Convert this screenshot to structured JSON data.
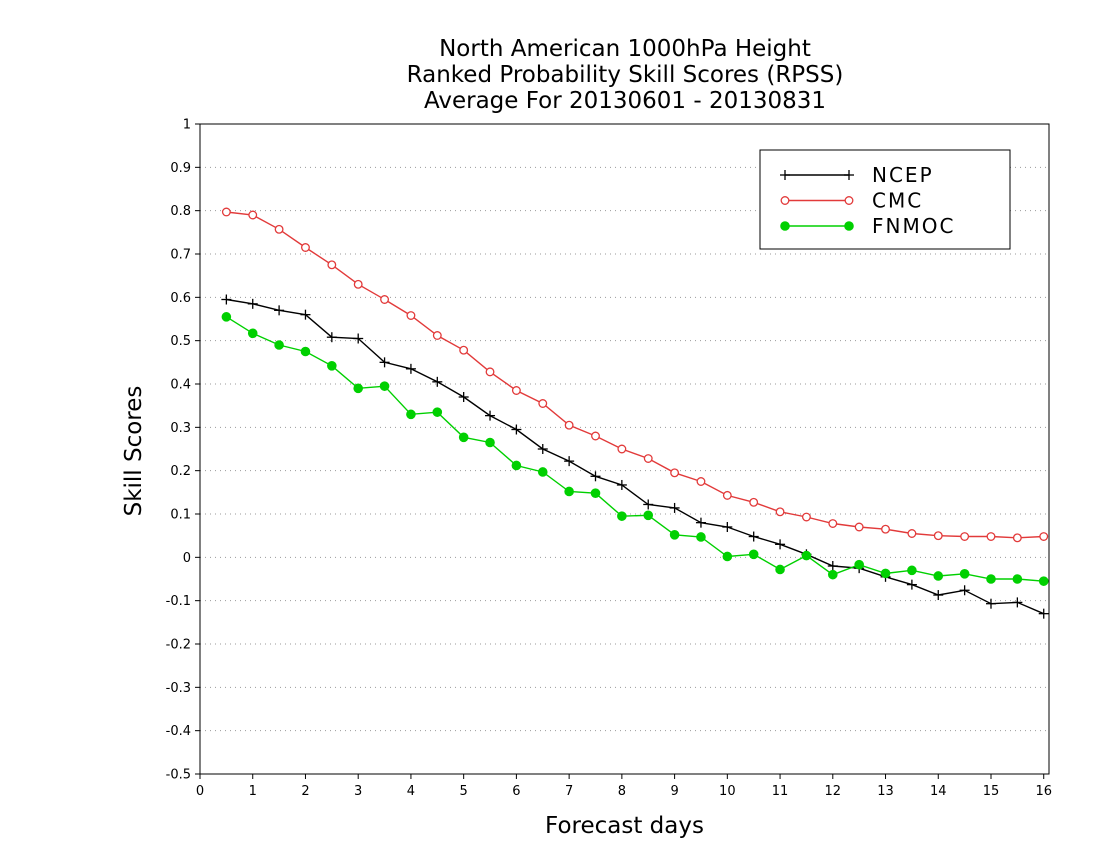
{
  "chart_data": {
    "type": "line",
    "title": [
      "North American 1000hPa Height",
      "Ranked Probability Skill Scores (RPSS)",
      "Average For 20130601 - 20130831"
    ],
    "xlabel": "Forecast days",
    "ylabel": "Skill Scores",
    "xlim": [
      0,
      16.1
    ],
    "ylim": [
      -0.5,
      1
    ],
    "xticks": [
      "0",
      "1",
      "2",
      "3",
      "4",
      "5",
      "6",
      "7",
      "8",
      "9",
      "10",
      "11",
      "12",
      "13",
      "14",
      "15",
      "16"
    ],
    "yticks": [
      "-0.5",
      "-0.4",
      "-0.3",
      "-0.2",
      "-0.1",
      "0",
      "0.1",
      "0.2",
      "0.3",
      "0.4",
      "0.5",
      "0.6",
      "0.7",
      "0.8",
      "0.9",
      "1"
    ],
    "grid": "horizontal dotted",
    "legend_position": "top-right",
    "x": [
      0.5,
      1,
      1.5,
      2,
      2.5,
      3,
      3.5,
      4,
      4.5,
      5,
      5.5,
      6,
      6.5,
      7,
      7.5,
      8,
      8.5,
      9,
      9.5,
      10,
      10.5,
      11,
      11.5,
      12,
      12.5,
      13,
      13.5,
      14,
      14.5,
      15,
      15.5,
      16
    ],
    "series": [
      {
        "name": "NCEP",
        "color": "#000000",
        "marker": "plus",
        "values": [
          0.595,
          0.585,
          0.57,
          0.56,
          0.508,
          0.505,
          0.45,
          0.435,
          0.405,
          0.37,
          0.327,
          0.295,
          0.25,
          0.222,
          0.187,
          0.167,
          0.122,
          0.114,
          0.08,
          0.07,
          0.048,
          0.03,
          0.007,
          -0.02,
          -0.025,
          -0.045,
          -0.063,
          -0.087,
          -0.076,
          -0.107,
          -0.104,
          -0.13
        ]
      },
      {
        "name": "CMC",
        "color": "#e23a3a",
        "marker": "open-circle",
        "values": [
          0.797,
          0.79,
          0.757,
          0.715,
          0.675,
          0.63,
          0.595,
          0.558,
          0.512,
          0.478,
          0.428,
          0.385,
          0.355,
          0.305,
          0.28,
          0.25,
          0.228,
          0.195,
          0.175,
          0.143,
          0.127,
          0.105,
          0.093,
          0.078,
          0.07,
          0.065,
          0.055,
          0.05,
          0.048,
          0.048,
          0.045,
          0.048
        ]
      },
      {
        "name": "FNMOC",
        "color": "#00d000",
        "marker": "filled-circle",
        "values": [
          0.555,
          0.517,
          0.49,
          0.475,
          0.442,
          0.39,
          0.395,
          0.33,
          0.335,
          0.277,
          0.265,
          0.212,
          0.197,
          0.152,
          0.148,
          0.095,
          0.097,
          0.052,
          0.047,
          0.002,
          0.007,
          -0.028,
          0.004,
          -0.04,
          -0.017,
          -0.037,
          -0.03,
          -0.043,
          -0.038,
          -0.05,
          -0.05,
          -0.055
        ]
      }
    ]
  }
}
